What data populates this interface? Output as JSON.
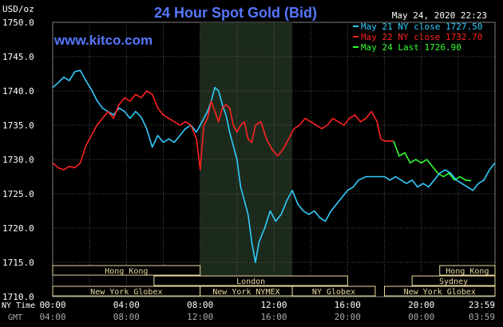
{
  "header": {
    "unit": "USD/oz",
    "title": "24 Hour Spot Gold (Bid)",
    "datetime": "May 24, 2020 22:23",
    "site": "www.kitco.com"
  },
  "legend": [
    {
      "label": "May 21 NY close 1727.50",
      "color": "#33ccff"
    },
    {
      "label": "May 22 NY close 1732.70",
      "color": "#ff2222"
    },
    {
      "label": "May 24 Last 1726.90",
      "color": "#33ff33"
    }
  ],
  "sessions": [
    {
      "label": "Hong Kong",
      "start": 0.0,
      "end": 8.0,
      "row": 0
    },
    {
      "label": "London",
      "start": 5.5,
      "end": 16.0,
      "row": 1
    },
    {
      "label": "New York Globex",
      "start": 0.0,
      "end": 8.0,
      "row": 2
    },
    {
      "label": "New York NYMEX",
      "start": 8.0,
      "end": 13.0,
      "row": 2
    },
    {
      "label": "NY Globex",
      "start": 13.0,
      "end": 17.5,
      "row": 2
    },
    {
      "label": "Hong Kong",
      "start": 21.0,
      "end": 24.0,
      "row": 0
    },
    {
      "label": "Sydney",
      "start": 19.5,
      "end": 24.0,
      "row": 1
    },
    {
      "label": "New York Globex",
      "start": 18.0,
      "end": 24.0,
      "row": 2
    }
  ],
  "axis": {
    "ny_time_label": "NY Time",
    "gmt_label": "GMT",
    "ny_ticks": [
      "00:00",
      "04:00",
      "08:00",
      "12:00",
      "16:00",
      "20:00",
      "23:59"
    ],
    "gmt_ticks": [
      "04:00",
      "08:00",
      "12:00",
      "16:00",
      "20:00",
      "00:00",
      "03:59"
    ]
  },
  "chart_data": {
    "type": "line",
    "title": "24 Hour Spot Gold (Bid)",
    "ylabel": "USD/oz",
    "xlabel": "NY Time",
    "xlim": [
      0,
      24
    ],
    "ylim": [
      1710,
      1750
    ],
    "yticks": [
      1710,
      1715,
      1720,
      1725,
      1730,
      1735,
      1740,
      1745,
      1750
    ],
    "grid": true,
    "nymex_session_shading": [
      8,
      13
    ],
    "series": [
      {
        "name": "May 21 NY close 1727.50",
        "color": "#33ccff",
        "points": [
          [
            0.0,
            1740.5
          ],
          [
            0.3,
            1741.2
          ],
          [
            0.6,
            1742.0
          ],
          [
            0.9,
            1741.5
          ],
          [
            1.2,
            1742.8
          ],
          [
            1.5,
            1743.0
          ],
          [
            1.8,
            1741.5
          ],
          [
            2.1,
            1740.2
          ],
          [
            2.4,
            1738.6
          ],
          [
            2.7,
            1737.5
          ],
          [
            3.0,
            1737.0
          ],
          [
            3.3,
            1736.5
          ],
          [
            3.6,
            1737.5
          ],
          [
            3.9,
            1737.0
          ],
          [
            4.2,
            1736.0
          ],
          [
            4.5,
            1737.0
          ],
          [
            4.8,
            1736.2
          ],
          [
            5.1,
            1734.5
          ],
          [
            5.4,
            1731.8
          ],
          [
            5.7,
            1733.5
          ],
          [
            6.0,
            1732.5
          ],
          [
            6.3,
            1733.0
          ],
          [
            6.6,
            1732.5
          ],
          [
            6.9,
            1733.5
          ],
          [
            7.2,
            1734.5
          ],
          [
            7.5,
            1735.0
          ],
          [
            7.8,
            1734.0
          ],
          [
            8.1,
            1735.5
          ],
          [
            8.4,
            1737.0
          ],
          [
            8.6,
            1738.5
          ],
          [
            8.8,
            1740.5
          ],
          [
            9.0,
            1740.0
          ],
          [
            9.2,
            1738.0
          ],
          [
            9.4,
            1736.5
          ],
          [
            9.6,
            1734.0
          ],
          [
            9.8,
            1732.0
          ],
          [
            10.0,
            1730.0
          ],
          [
            10.2,
            1726.0
          ],
          [
            10.4,
            1724.0
          ],
          [
            10.6,
            1722.0
          ],
          [
            10.8,
            1718.0
          ],
          [
            11.0,
            1715.0
          ],
          [
            11.2,
            1718.0
          ],
          [
            11.5,
            1720.0
          ],
          [
            11.8,
            1722.5
          ],
          [
            12.1,
            1721.0
          ],
          [
            12.4,
            1722.0
          ],
          [
            12.7,
            1724.0
          ],
          [
            13.0,
            1725.5
          ],
          [
            13.3,
            1723.5
          ],
          [
            13.6,
            1722.5
          ],
          [
            13.9,
            1722.0
          ],
          [
            14.2,
            1722.5
          ],
          [
            14.5,
            1721.5
          ],
          [
            14.8,
            1721.0
          ],
          [
            15.1,
            1722.5
          ],
          [
            15.4,
            1723.5
          ],
          [
            15.7,
            1724.5
          ],
          [
            16.0,
            1725.5
          ],
          [
            16.3,
            1726.0
          ],
          [
            16.6,
            1727.0
          ],
          [
            17.0,
            1727.5
          ],
          [
            17.5,
            1727.5
          ]
        ]
      },
      {
        "name": "May 22 NY close 1732.70",
        "color": "#ff2222",
        "points": [
          [
            0.0,
            1729.5
          ],
          [
            0.3,
            1728.8
          ],
          [
            0.6,
            1728.5
          ],
          [
            0.9,
            1729.0
          ],
          [
            1.2,
            1728.8
          ],
          [
            1.5,
            1729.5
          ],
          [
            1.8,
            1732.0
          ],
          [
            2.1,
            1733.5
          ],
          [
            2.4,
            1735.0
          ],
          [
            2.7,
            1736.0
          ],
          [
            3.0,
            1737.0
          ],
          [
            3.3,
            1736.0
          ],
          [
            3.6,
            1738.0
          ],
          [
            3.9,
            1739.0
          ],
          [
            4.2,
            1738.5
          ],
          [
            4.5,
            1739.5
          ],
          [
            4.8,
            1739.0
          ],
          [
            5.1,
            1740.0
          ],
          [
            5.4,
            1739.5
          ],
          [
            5.7,
            1737.5
          ],
          [
            6.0,
            1736.5
          ],
          [
            6.3,
            1736.0
          ],
          [
            6.6,
            1735.5
          ],
          [
            6.9,
            1735.0
          ],
          [
            7.2,
            1735.5
          ],
          [
            7.5,
            1735.0
          ],
          [
            7.8,
            1733.0
          ],
          [
            8.0,
            1728.5
          ],
          [
            8.2,
            1735.0
          ],
          [
            8.4,
            1736.0
          ],
          [
            8.6,
            1738.5
          ],
          [
            8.8,
            1737.0
          ],
          [
            9.0,
            1735.5
          ],
          [
            9.2,
            1737.5
          ],
          [
            9.4,
            1738.0
          ],
          [
            9.6,
            1737.5
          ],
          [
            9.8,
            1735.0
          ],
          [
            10.0,
            1734.0
          ],
          [
            10.2,
            1735.0
          ],
          [
            10.4,
            1735.5
          ],
          [
            10.6,
            1733.0
          ],
          [
            10.8,
            1732.5
          ],
          [
            11.0,
            1735.0
          ],
          [
            11.3,
            1735.5
          ],
          [
            11.6,
            1733.0
          ],
          [
            11.9,
            1731.5
          ],
          [
            12.2,
            1730.5
          ],
          [
            12.5,
            1731.5
          ],
          [
            12.8,
            1733.0
          ],
          [
            13.1,
            1734.5
          ],
          [
            13.4,
            1735.0
          ],
          [
            13.7,
            1736.0
          ],
          [
            14.0,
            1735.5
          ],
          [
            14.3,
            1735.0
          ],
          [
            14.6,
            1734.5
          ],
          [
            14.9,
            1735.0
          ],
          [
            15.2,
            1736.0
          ],
          [
            15.5,
            1735.5
          ],
          [
            15.8,
            1735.0
          ],
          [
            16.1,
            1736.0
          ],
          [
            16.4,
            1736.5
          ],
          [
            16.7,
            1735.5
          ],
          [
            17.0,
            1736.0
          ],
          [
            17.3,
            1737.0
          ],
          [
            17.6,
            1735.5
          ],
          [
            17.8,
            1733.0
          ],
          [
            18.0,
            1732.7
          ],
          [
            18.5,
            1732.7
          ]
        ]
      },
      {
        "name": "May 24 Last 1726.90",
        "color": "#33ff33",
        "points": [
          [
            18.5,
            1732.7
          ],
          [
            18.8,
            1730.5
          ],
          [
            19.1,
            1731.0
          ],
          [
            19.4,
            1729.5
          ],
          [
            19.7,
            1730.0
          ],
          [
            20.0,
            1729.5
          ],
          [
            20.3,
            1730.0
          ],
          [
            20.6,
            1729.0
          ],
          [
            20.9,
            1728.0
          ],
          [
            21.2,
            1727.5
          ],
          [
            21.5,
            1728.0
          ],
          [
            21.8,
            1727.0
          ],
          [
            22.1,
            1727.5
          ],
          [
            22.4,
            1727.0
          ],
          [
            22.7,
            1726.9
          ]
        ]
      },
      {
        "name": "",
        "color": "#33ccff",
        "points": [
          [
            17.5,
            1727.5
          ],
          [
            18.0,
            1727.5
          ],
          [
            18.3,
            1727.0
          ],
          [
            18.6,
            1727.5
          ],
          [
            18.9,
            1727.0
          ],
          [
            19.2,
            1726.5
          ],
          [
            19.5,
            1727.0
          ],
          [
            19.8,
            1726.0
          ],
          [
            20.1,
            1726.5
          ],
          [
            20.4,
            1726.0
          ],
          [
            20.7,
            1727.0
          ],
          [
            21.0,
            1728.0
          ],
          [
            21.3,
            1728.5
          ],
          [
            21.6,
            1728.0
          ],
          [
            21.9,
            1727.0
          ],
          [
            22.2,
            1726.5
          ],
          [
            22.5,
            1726.0
          ],
          [
            22.8,
            1725.5
          ],
          [
            23.1,
            1726.5
          ],
          [
            23.4,
            1727.0
          ],
          [
            23.7,
            1728.5
          ],
          [
            24.0,
            1729.5
          ]
        ]
      }
    ]
  }
}
